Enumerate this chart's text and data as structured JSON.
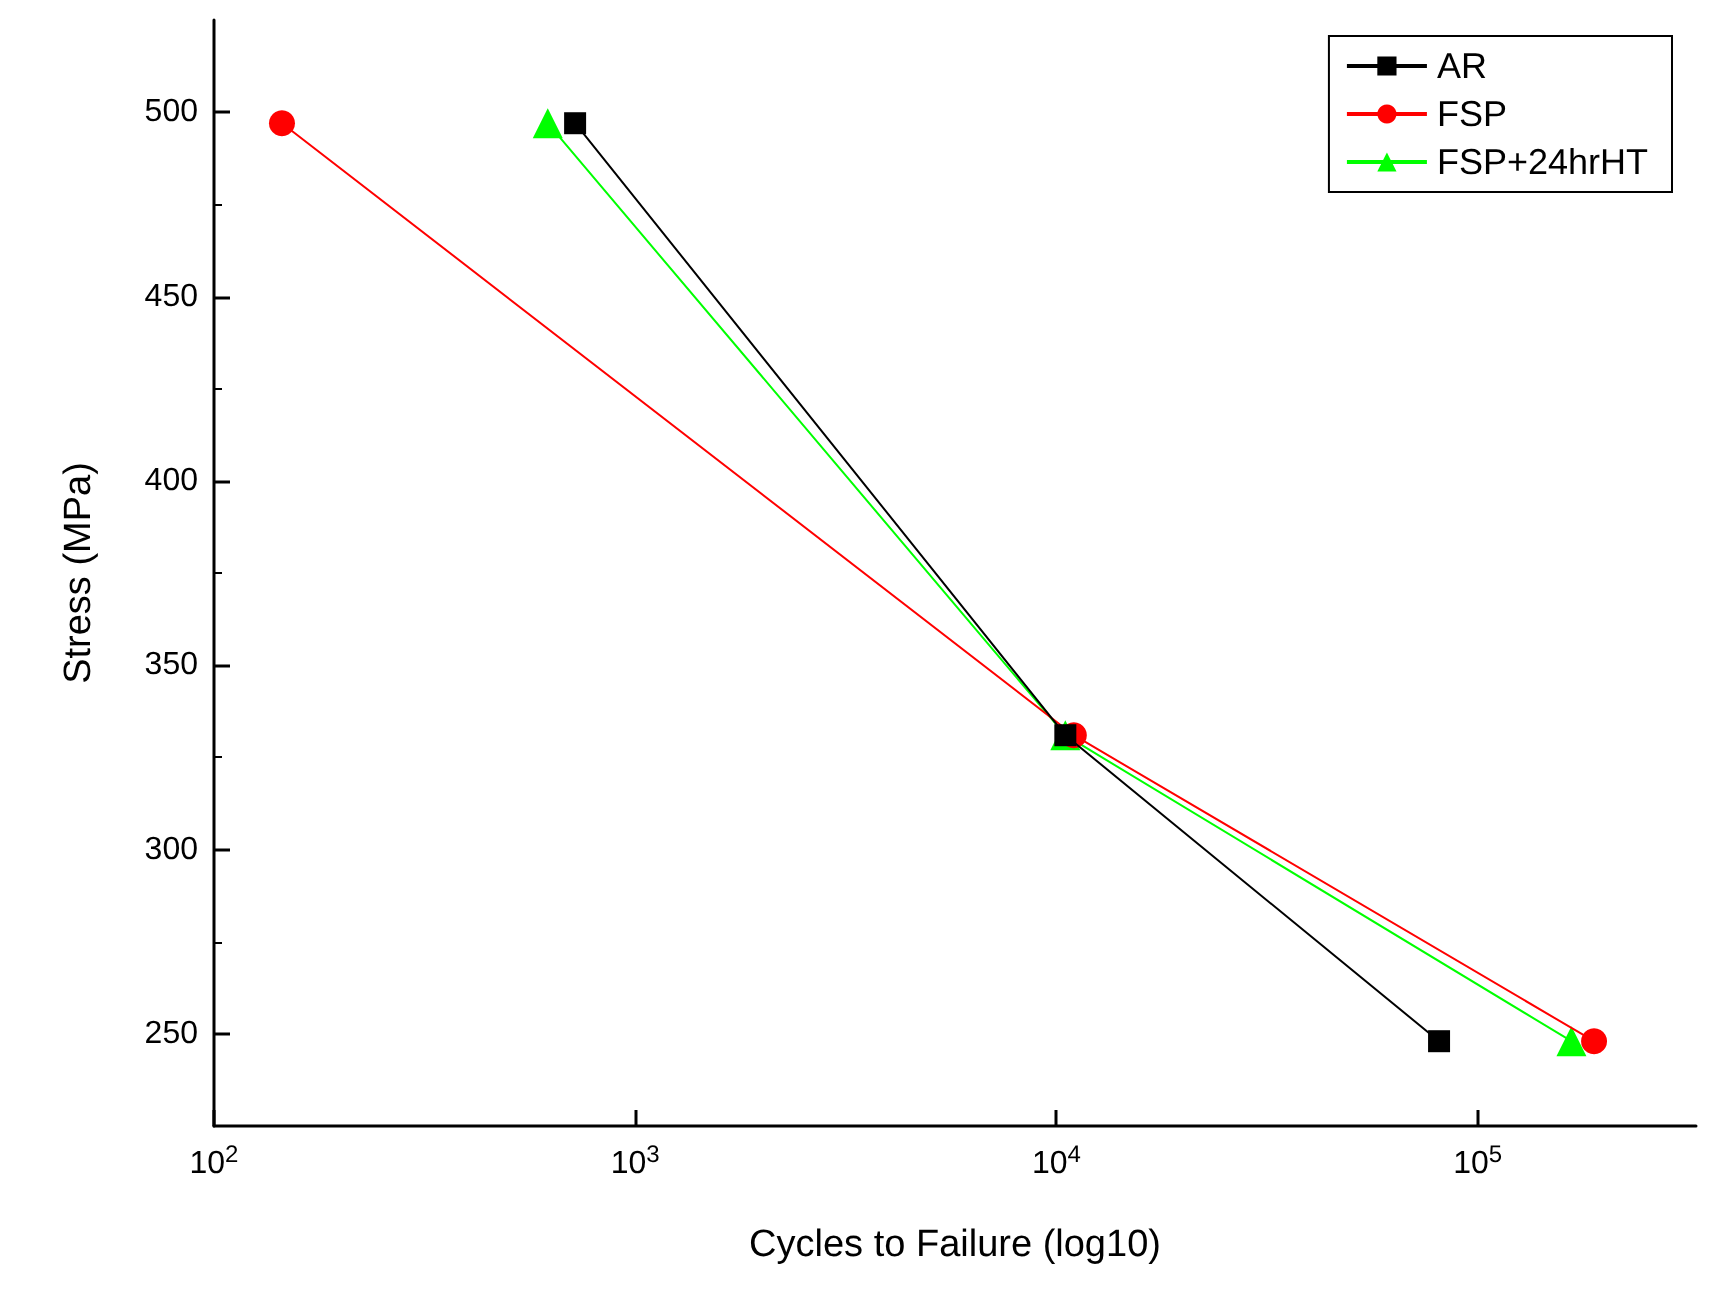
{
  "chart_data": {
    "type": "line",
    "xlabel": "Cycles to Failure (log10)",
    "ylabel": "Stress (MPa)",
    "log": "x",
    "xlim": [
      100,
      330000
    ],
    "xticks": [
      {
        "value": 100,
        "label": "10$^{2}$"
      },
      {
        "value": 1000,
        "label": "10$^{3}$"
      },
      {
        "value": 10000,
        "label": "10$^{4}$"
      },
      {
        "value": 100000,
        "label": "10$^{5}$"
      }
    ],
    "ylim": [
      225,
      525
    ],
    "yticks": [
      250,
      300,
      350,
      400,
      450,
      500
    ],
    "grid": false,
    "legend": "top right",
    "series": [
      {
        "name": "AR",
        "color": "#000000",
        "marker": "square",
        "x": [
          720,
          10500,
          81000
        ],
        "values": [
          497,
          331,
          248
        ]
      },
      {
        "name": "FSP",
        "color": "#ff0000",
        "marker": "circle",
        "x": [
          145,
          11000,
          189000
        ],
        "values": [
          497,
          331,
          248
        ]
      },
      {
        "name": "FSP+24hrHT",
        "color": "#00ff00",
        "marker": "triangle",
        "x": [
          620,
          10500,
          167000
        ],
        "values": [
          497,
          331,
          248
        ]
      }
    ]
  }
}
